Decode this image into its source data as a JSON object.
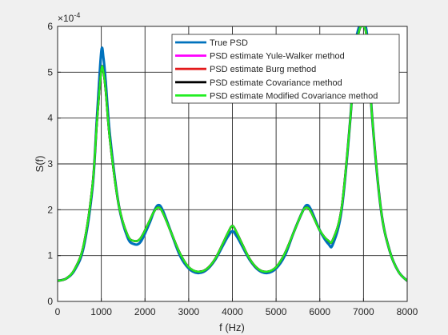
{
  "figure": {
    "background": "#f0f0f0",
    "axes_background": "#ffffff"
  },
  "chart_data": {
    "type": "line",
    "xlabel": "f (Hz)",
    "ylabel": "S(f)",
    "y_exponent_label": "×10",
    "y_exponent_power": "-4",
    "xlim": [
      0,
      8000
    ],
    "ylim": [
      0,
      6
    ],
    "xticks": [
      0,
      1000,
      2000,
      3000,
      4000,
      5000,
      6000,
      7000,
      8000
    ],
    "yticks": [
      0,
      1,
      2,
      3,
      4,
      5,
      6
    ],
    "grid": true,
    "legend_position": "top-right",
    "series": [
      {
        "name": "True PSD",
        "color": "#0072bd",
        "width": 3.2,
        "x": [
          0,
          200,
          400,
          600,
          800,
          900,
          1000,
          1050,
          1100,
          1200,
          1400,
          1600,
          1750,
          1900,
          2100,
          2200,
          2300,
          2400,
          2600,
          2800,
          3000,
          3200,
          3400,
          3600,
          3800,
          3900,
          4000,
          4100,
          4200,
          4400,
          4600,
          4800,
          5000,
          5200,
          5400,
          5600,
          5700,
          5800,
          6000,
          6200,
          6300,
          6500,
          6700,
          6800,
          6900,
          6950,
          7000,
          7050,
          7100,
          7200,
          7400,
          7600,
          7800,
          8000
        ],
        "y": [
          0.45,
          0.5,
          0.7,
          1.2,
          2.5,
          4.0,
          5.45,
          5.3,
          4.8,
          3.6,
          2.1,
          1.4,
          1.25,
          1.3,
          1.7,
          1.95,
          2.1,
          2.0,
          1.5,
          1.0,
          0.72,
          0.62,
          0.68,
          0.9,
          1.25,
          1.42,
          1.53,
          1.42,
          1.25,
          0.9,
          0.68,
          0.62,
          0.72,
          1.0,
          1.5,
          1.95,
          2.1,
          2.0,
          1.55,
          1.25,
          1.25,
          2.0,
          4.0,
          5.5,
          6.0,
          6.1,
          6.1,
          6.0,
          5.6,
          4.0,
          2.0,
          1.1,
          0.65,
          0.45
        ]
      },
      {
        "name": "PSD estimate Yule-Walker method",
        "color": "#ff00ff",
        "width": 2.6,
        "x": [
          0,
          200,
          400,
          600,
          800,
          900,
          1000,
          1050,
          1100,
          1200,
          1400,
          1600,
          1750,
          1900,
          2100,
          2200,
          2300,
          2400,
          2600,
          2800,
          3000,
          3200,
          3400,
          3600,
          3800,
          3900,
          4000,
          4100,
          4200,
          4400,
          4600,
          4800,
          5000,
          5200,
          5400,
          5600,
          5700,
          5800,
          6000,
          6200,
          6300,
          6500,
          6700,
          6800,
          6900,
          6950,
          7000,
          7050,
          7100,
          7200,
          7400,
          7600,
          7800,
          8000
        ],
        "y": [
          0.45,
          0.5,
          0.72,
          1.25,
          2.55,
          3.9,
          5.05,
          5.0,
          4.6,
          3.5,
          2.1,
          1.45,
          1.32,
          1.38,
          1.75,
          1.95,
          2.05,
          1.95,
          1.5,
          1.05,
          0.75,
          0.65,
          0.7,
          0.92,
          1.3,
          1.5,
          1.65,
          1.5,
          1.3,
          0.92,
          0.7,
          0.65,
          0.75,
          1.05,
          1.5,
          1.95,
          2.05,
          1.95,
          1.55,
          1.32,
          1.35,
          2.05,
          4.0,
          5.4,
          5.9,
          6.0,
          6.0,
          5.9,
          5.5,
          4.0,
          2.0,
          1.1,
          0.65,
          0.45
        ]
      },
      {
        "name": "PSD estimate Burg method",
        "color": "#e31a1c",
        "width": 2.6,
        "x": [
          0,
          200,
          400,
          600,
          800,
          900,
          1000,
          1050,
          1100,
          1200,
          1400,
          1600,
          1750,
          1900,
          2100,
          2200,
          2300,
          2400,
          2600,
          2800,
          3000,
          3200,
          3400,
          3600,
          3800,
          3900,
          4000,
          4100,
          4200,
          4400,
          4600,
          4800,
          5000,
          5200,
          5400,
          5600,
          5700,
          5800,
          6000,
          6200,
          6300,
          6500,
          6700,
          6800,
          6900,
          6950,
          7000,
          7050,
          7100,
          7200,
          7400,
          7600,
          7800,
          8000
        ],
        "y": [
          0.45,
          0.5,
          0.72,
          1.25,
          2.55,
          3.9,
          5.05,
          5.0,
          4.6,
          3.5,
          2.1,
          1.45,
          1.32,
          1.38,
          1.75,
          1.95,
          2.05,
          1.95,
          1.5,
          1.05,
          0.75,
          0.65,
          0.7,
          0.92,
          1.3,
          1.5,
          1.65,
          1.5,
          1.3,
          0.92,
          0.7,
          0.65,
          0.75,
          1.05,
          1.5,
          1.95,
          2.05,
          1.95,
          1.55,
          1.32,
          1.35,
          2.05,
          4.0,
          5.4,
          5.9,
          6.0,
          6.0,
          5.9,
          5.5,
          4.0,
          2.0,
          1.1,
          0.65,
          0.45
        ]
      },
      {
        "name": "PSD estimate Covariance method",
        "color": "#000000",
        "width": 2.6,
        "x": [
          0,
          200,
          400,
          600,
          800,
          900,
          1000,
          1050,
          1100,
          1200,
          1400,
          1600,
          1750,
          1900,
          2100,
          2200,
          2300,
          2400,
          2600,
          2800,
          3000,
          3200,
          3400,
          3600,
          3800,
          3900,
          4000,
          4100,
          4200,
          4400,
          4600,
          4800,
          5000,
          5200,
          5400,
          5600,
          5700,
          5800,
          6000,
          6200,
          6300,
          6500,
          6700,
          6800,
          6900,
          6950,
          7000,
          7050,
          7100,
          7200,
          7400,
          7600,
          7800,
          8000
        ],
        "y": [
          0.45,
          0.5,
          0.72,
          1.25,
          2.55,
          3.9,
          5.05,
          5.0,
          4.6,
          3.5,
          2.1,
          1.45,
          1.32,
          1.38,
          1.75,
          1.95,
          2.05,
          1.95,
          1.5,
          1.05,
          0.75,
          0.65,
          0.7,
          0.92,
          1.3,
          1.5,
          1.65,
          1.5,
          1.3,
          0.92,
          0.7,
          0.65,
          0.75,
          1.05,
          1.5,
          1.95,
          2.05,
          1.95,
          1.55,
          1.32,
          1.35,
          2.05,
          4.0,
          5.4,
          5.9,
          6.0,
          6.0,
          5.9,
          5.5,
          4.0,
          2.0,
          1.1,
          0.65,
          0.45
        ]
      },
      {
        "name": "PSD estimate Modified Covariance method",
        "color": "#22ee22",
        "width": 2.4,
        "x": [
          0,
          200,
          400,
          600,
          800,
          900,
          1000,
          1050,
          1100,
          1200,
          1400,
          1600,
          1750,
          1900,
          2100,
          2200,
          2300,
          2400,
          2600,
          2800,
          3000,
          3200,
          3400,
          3600,
          3800,
          3900,
          4000,
          4100,
          4200,
          4400,
          4600,
          4800,
          5000,
          5200,
          5400,
          5600,
          5700,
          5800,
          6000,
          6200,
          6300,
          6500,
          6700,
          6800,
          6900,
          6950,
          7000,
          7050,
          7100,
          7200,
          7400,
          7600,
          7800,
          8000
        ],
        "y": [
          0.45,
          0.5,
          0.72,
          1.25,
          2.55,
          3.9,
          5.05,
          5.0,
          4.6,
          3.5,
          2.1,
          1.45,
          1.32,
          1.38,
          1.75,
          1.95,
          2.05,
          1.95,
          1.5,
          1.05,
          0.75,
          0.65,
          0.7,
          0.92,
          1.3,
          1.5,
          1.65,
          1.5,
          1.3,
          0.92,
          0.7,
          0.65,
          0.75,
          1.05,
          1.5,
          1.95,
          2.05,
          1.95,
          1.55,
          1.32,
          1.35,
          2.05,
          4.0,
          5.4,
          5.9,
          6.0,
          6.0,
          5.9,
          5.5,
          4.0,
          2.0,
          1.1,
          0.65,
          0.45
        ]
      }
    ]
  }
}
